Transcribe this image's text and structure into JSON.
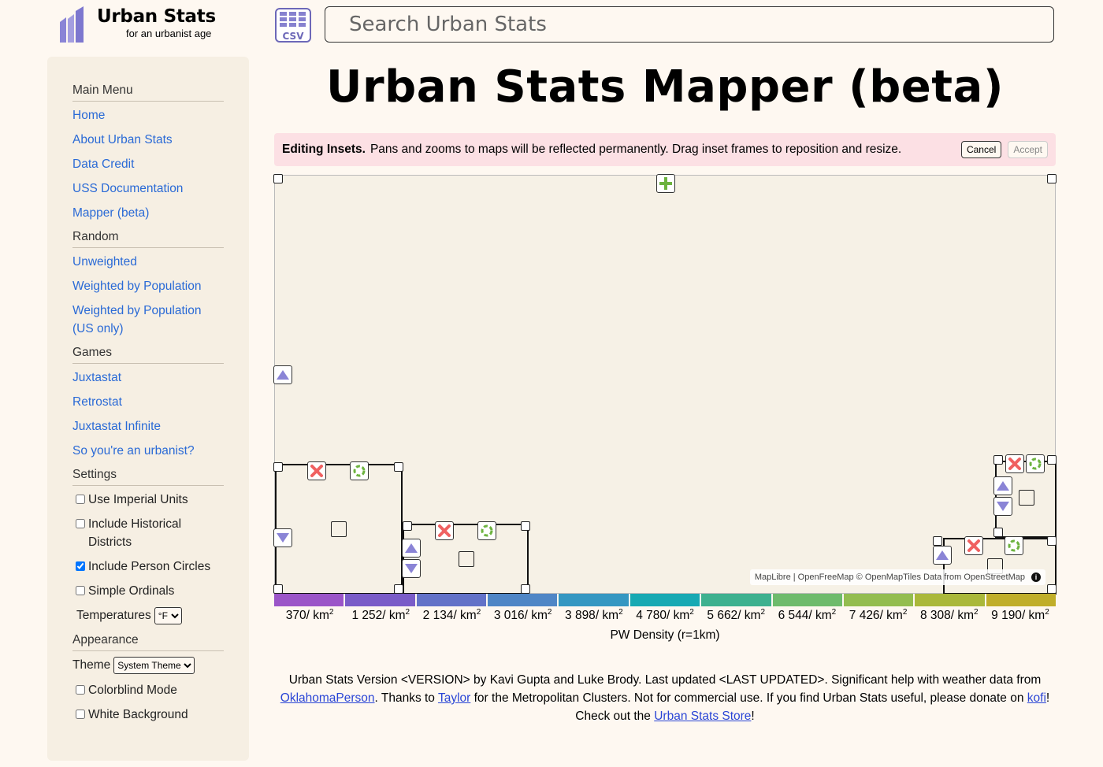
{
  "header": {
    "brand": "Urban Stats",
    "tagline": "for an urbanist age",
    "csv_icon": "csv-table-icon",
    "search_placeholder": "Search Urban Stats"
  },
  "sidebar": {
    "sections": [
      {
        "title": "Main Menu",
        "links": [
          "Home",
          "About Urban Stats",
          "Data Credit",
          "USS Documentation",
          "Mapper (beta)"
        ]
      },
      {
        "title": "Random",
        "links": [
          "Unweighted",
          "Weighted by Population",
          "Weighted by Population (US only)"
        ]
      },
      {
        "title": "Games",
        "links": [
          "Juxtastat",
          "Retrostat",
          "Juxtastat Infinite",
          "So you're an urbanist?"
        ]
      }
    ],
    "settings": {
      "title": "Settings",
      "use_imperial": "Use Imperial Units",
      "include_historical": "Include Historical Districts",
      "include_person_circles": "Include Person Circles",
      "simple_ordinals": "Simple Ordinals",
      "temperatures_label": "Temperatures",
      "temperatures_value": "°F"
    },
    "appearance": {
      "title": "Appearance",
      "theme_label": "Theme",
      "theme_value": "System Theme",
      "colorblind": "Colorblind Mode",
      "white_background": "White Background"
    }
  },
  "main": {
    "title": "Urban Stats Mapper (beta)",
    "banner": {
      "bold": "Editing Insets.",
      "message": "Pans and zooms to maps will be reflected permanently. Drag inset frames to reposition and resize.",
      "cancel": "Cancel",
      "accept": "Accept"
    },
    "attribution": {
      "text": "MapLibre | OpenFreeMap © OpenMapTiles Data from OpenStreetMap",
      "info": "i"
    },
    "scale": {
      "colors": [
        "#9b55c8",
        "#7a5cc8",
        "#6372c8",
        "#4f86c6",
        "#3497c2",
        "#17a9b3",
        "#3db18f",
        "#6ebb6c",
        "#93bd4f",
        "#aab83a",
        "#c0ae2a"
      ],
      "ticks": [
        "370",
        "1 252",
        "2 134",
        "3 016",
        "3 898",
        "4 780",
        "5 662",
        "6 544",
        "7 426",
        "8 308",
        "9 190"
      ],
      "unit": "/ km",
      "unit_sup": "2",
      "label": "PW Density (r=1km)"
    }
  },
  "footer": {
    "t1": "Urban Stats Version <VERSION> by Kavi Gupta and Luke Brody. Last updated <LAST UPDATED>. Significant help with weather data from ",
    "l1": "OklahomaPerson",
    "t2": ". Thanks to ",
    "l2": "Taylor",
    "t3": " for the Metropolitan Clusters. Not for commercial use. If you find Urban Stats useful, please donate on ",
    "l3": "kofi",
    "t4": "!",
    "t5": "Check out the ",
    "l4": "Urban Stats Store",
    "t6": "!"
  }
}
